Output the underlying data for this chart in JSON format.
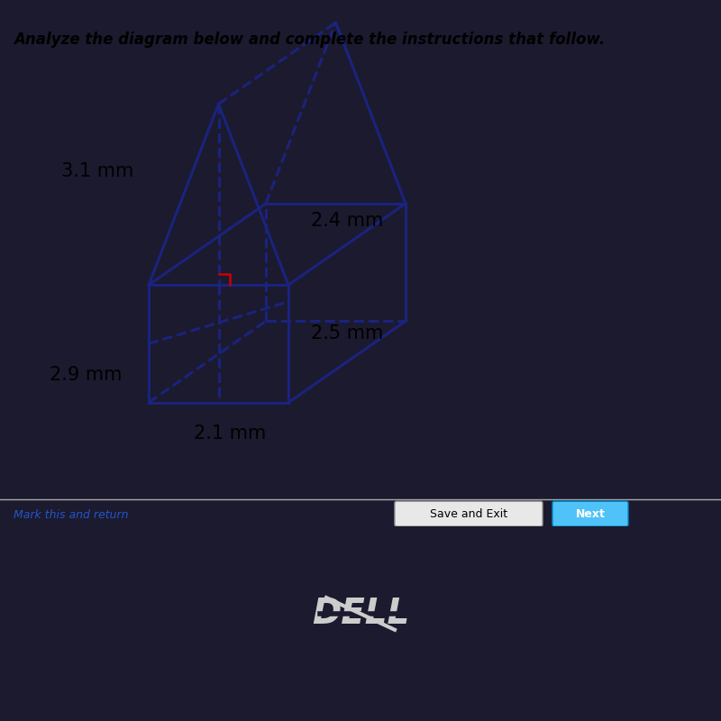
{
  "title_text": "Analyze the diagram below and complete the instructions that follow.",
  "label_31": "3.1 mm",
  "label_24": "2.4 mm",
  "label_25": "2.5 mm",
  "label_29": "2.9 mm",
  "label_21": "2.1 mm",
  "bg_color": "#c8c4a0",
  "screen_bg": "#d0cca8",
  "line_color": "#1a237e",
  "dashed_color": "#1a237e",
  "right_angle_color": "#cc0000",
  "next_btn_color": "#4fc3f7",
  "save_exit_text": "Save and Exit",
  "mark_text": "Mark this and return",
  "next_text": "Next"
}
